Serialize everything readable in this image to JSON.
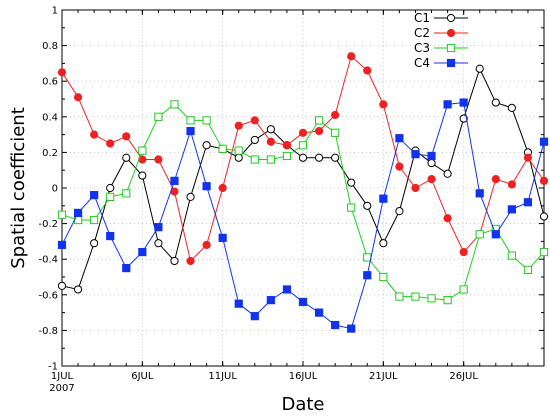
{
  "chart_data": {
    "type": "line",
    "xlabel": "Date",
    "ylabel": "Spatial coefficient",
    "x": [
      1,
      2,
      3,
      4,
      5,
      6,
      7,
      8,
      9,
      10,
      11,
      12,
      13,
      14,
      15,
      16,
      17,
      18,
      19,
      20,
      21,
      22,
      23,
      24,
      25,
      26,
      27,
      28,
      29,
      30,
      31
    ],
    "xlim": [
      1,
      31
    ],
    "ylim": [
      -1,
      1
    ],
    "x_ticks": [
      {
        "x": 1,
        "label": "1JUL",
        "sublabel": "2007"
      },
      {
        "x": 6,
        "label": "6JUL"
      },
      {
        "x": 11,
        "label": "11JUL"
      },
      {
        "x": 16,
        "label": "16JUL"
      },
      {
        "x": 21,
        "label": "21JUL"
      },
      {
        "x": 26,
        "label": "26JUL"
      }
    ],
    "y_ticks": [
      {
        "y": 1,
        "label": "1"
      },
      {
        "y": 0.8,
        "label": "0.8"
      },
      {
        "y": 0.6,
        "label": "0.6"
      },
      {
        "y": 0.4,
        "label": "0.4"
      },
      {
        "y": 0.2,
        "label": "0.2"
      },
      {
        "y": 0,
        "label": "0"
      },
      {
        "y": -0.2,
        "label": "-0.2"
      },
      {
        "y": -0.4,
        "label": "-0.4"
      },
      {
        "y": -0.6,
        "label": "-0.6"
      },
      {
        "y": -0.8,
        "label": "-0.8"
      },
      {
        "y": -1,
        "label": "-1"
      }
    ],
    "grid": true,
    "legend_position": "top-right",
    "series": [
      {
        "name": "C1",
        "color": "#000000",
        "marker": "open-circle",
        "values": [
          -0.55,
          -0.57,
          -0.31,
          0.0,
          0.17,
          0.07,
          -0.31,
          -0.41,
          -0.05,
          0.24,
          0.22,
          0.17,
          0.27,
          0.33,
          0.24,
          0.17,
          0.17,
          0.17,
          0.03,
          -0.1,
          -0.31,
          -0.13,
          0.21,
          0.14,
          0.08,
          0.39,
          0.67,
          0.48,
          0.45,
          0.2,
          -0.16
        ]
      },
      {
        "name": "C2",
        "color": "#ee2222",
        "marker": "filled-circle",
        "values": [
          0.65,
          0.51,
          0.3,
          0.25,
          0.29,
          0.16,
          0.16,
          -0.02,
          -0.41,
          -0.32,
          0.0,
          0.35,
          0.38,
          0.26,
          0.24,
          0.31,
          0.32,
          0.41,
          0.74,
          0.66,
          0.47,
          0.12,
          0.0,
          0.05,
          -0.17,
          -0.36,
          -0.26,
          0.05,
          0.02,
          0.17,
          0.04
        ]
      },
      {
        "name": "C3",
        "color": "#22cc22",
        "marker": "open-square",
        "values": [
          -0.15,
          -0.18,
          -0.18,
          -0.05,
          -0.03,
          0.21,
          0.4,
          0.47,
          0.38,
          0.38,
          0.22,
          0.21,
          0.16,
          0.16,
          0.18,
          0.24,
          0.38,
          0.31,
          -0.11,
          -0.39,
          -0.5,
          -0.61,
          -0.61,
          -0.62,
          -0.63,
          -0.57,
          -0.26,
          -0.23,
          -0.38,
          -0.46,
          -0.36
        ]
      },
      {
        "name": "C4",
        "color": "#1133ee",
        "marker": "filled-square",
        "values": [
          -0.32,
          -0.14,
          -0.04,
          -0.27,
          -0.45,
          -0.36,
          -0.22,
          0.04,
          0.32,
          0.01,
          -0.28,
          -0.65,
          -0.72,
          -0.63,
          -0.57,
          -0.64,
          -0.7,
          -0.77,
          -0.79,
          -0.49,
          -0.06,
          0.28,
          0.19,
          0.18,
          0.47,
          0.48,
          -0.03,
          -0.26,
          -0.12,
          -0.08,
          0.26
        ]
      }
    ]
  }
}
